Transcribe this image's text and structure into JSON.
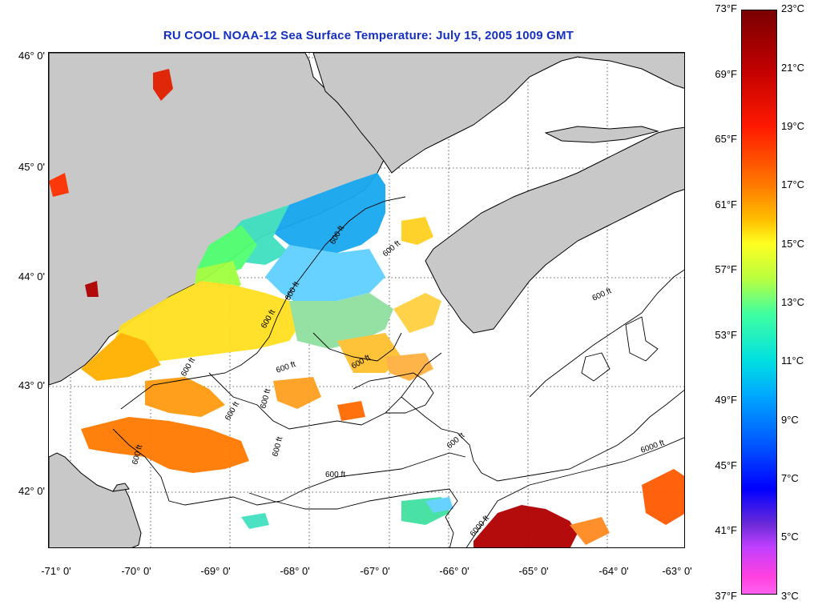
{
  "title": "RU COOL  NOAA-12  Sea Surface Temperature:  July 15, 2005 1009 GMT",
  "latitude_labels": [
    "46° 0'",
    "45° 0'",
    "44° 0'",
    "43° 0'",
    "42° 0'"
  ],
  "longitude_labels": [
    "-71° 0'",
    "-70° 0'",
    "-69° 0'",
    "-68° 0'",
    "-67° 0'",
    "-66° 0'",
    "-65° 0'",
    "-64° 0'",
    "-63° 0'"
  ],
  "colorbar": {
    "fahrenheit": [
      "73°F",
      "69°F",
      "65°F",
      "61°F",
      "57°F",
      "53°F",
      "49°F",
      "45°F",
      "41°F",
      "37°F"
    ],
    "celsius": [
      "23°C",
      "21°C",
      "19°C",
      "17°C",
      "15°C",
      "13°C",
      "11°C",
      "9°C",
      "7°C",
      "5°C",
      "3°C"
    ]
  },
  "contour_labels": [
    "600 ft",
    "600 ft",
    "600 ft",
    "600 ft",
    "600 ft",
    "600 ft",
    "600 ft",
    "600 ft",
    "600 ft",
    "600 ft",
    "600 ft",
    "600 ft",
    "600 ft",
    "600 ft",
    "6000 ft",
    "6000 ft"
  ],
  "colors": {
    "land": "#c8c8c8",
    "title": "#1530c0",
    "warm": "#b00000",
    "cold": "#18a8f0"
  }
}
